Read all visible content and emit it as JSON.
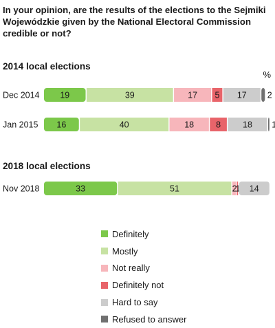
{
  "title": "In your opinion, are the results of the elections to the Sejmiki Wojewódzkie given by the National Electoral Commission credible or not?",
  "unit_label": "%",
  "chart_data": {
    "type": "bar",
    "orientation": "horizontal",
    "stacked": true,
    "xlim": [
      0,
      100
    ],
    "grid": false,
    "legend_position": "bottom",
    "series": [
      {
        "name": "Definitely",
        "color": "#7cc84a"
      },
      {
        "name": "Mostly",
        "color": "#c7e2a3"
      },
      {
        "name": "Not really",
        "color": "#f7b6bb"
      },
      {
        "name": "Definitely not",
        "color": "#e8646a"
      },
      {
        "name": "Hard to say",
        "color": "#cccccc"
      },
      {
        "name": "Refused to answer",
        "color": "#707070"
      }
    ],
    "groups": [
      {
        "title": "2014 local elections",
        "rows": [
          {
            "label": "Dec 2014",
            "values": [
              19,
              39,
              17,
              5,
              17,
              2
            ]
          },
          {
            "label": "Jan 2015",
            "values": [
              16,
              40,
              18,
              8,
              18,
              1
            ]
          }
        ]
      },
      {
        "title": "2018 local elections",
        "rows": [
          {
            "label": "Nov 2018",
            "values": [
              33,
              51,
              2,
              1,
              14,
              0
            ]
          }
        ]
      }
    ]
  }
}
